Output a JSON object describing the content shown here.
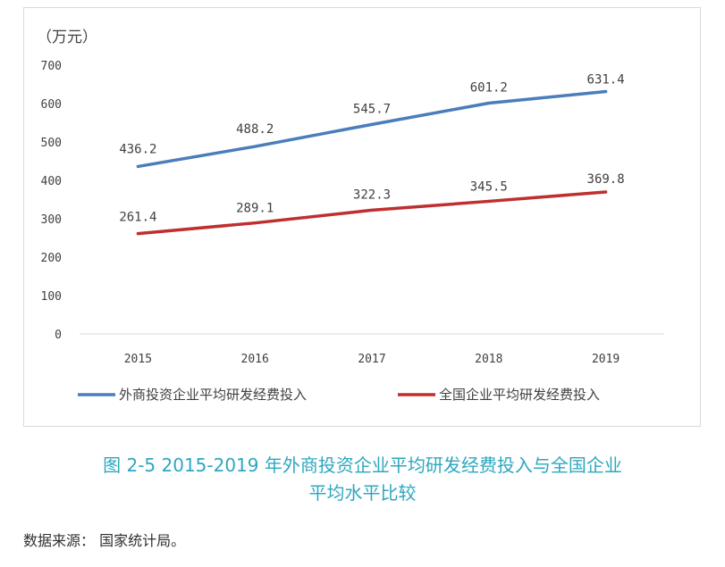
{
  "chart_data": {
    "type": "line",
    "unit": "（万元）",
    "categories": [
      "2015",
      "2016",
      "2017",
      "2018",
      "2019"
    ],
    "ylim": [
      0,
      700
    ],
    "yticks": [
      0,
      100,
      200,
      300,
      400,
      500,
      600,
      700
    ],
    "grid": false,
    "legend_position": "bottom",
    "series": [
      {
        "name": "外商投资企业平均研发经费投入",
        "color": "#4a7ebb",
        "values": [
          436.2,
          488.2,
          545.7,
          601.2,
          631.4
        ]
      },
      {
        "name": "全国企业平均研发经费投入",
        "color": "#be2f2f",
        "values": [
          261.4,
          289.1,
          322.3,
          345.5,
          369.8
        ]
      }
    ]
  },
  "caption": {
    "line1": "图 2-5 2015-2019 年外商投资企业平均研发经费投入与全国企业",
    "line2": "平均水平比较"
  },
  "source": "数据来源： 国家统计局。"
}
